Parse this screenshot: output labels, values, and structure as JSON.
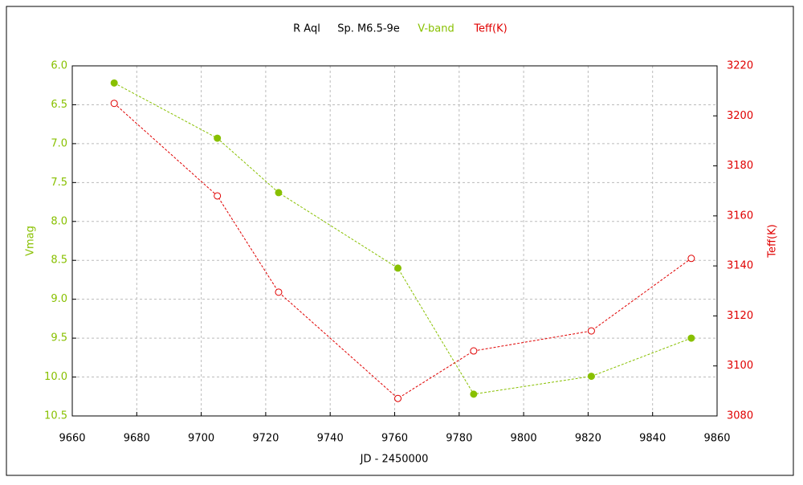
{
  "chart_data": {
    "type": "line",
    "title": "R Aql",
    "subtitle": "Sp. M6.5-9e",
    "xlabel": "JD - 2450000",
    "ylabel": "Vmag",
    "y2label": "Teff(K)",
    "x": [
      9673,
      9705,
      9724,
      9761,
      9784.5,
      9821,
      9852
    ],
    "series": [
      {
        "name": "V-band",
        "color": "#88c000",
        "marker": "filled",
        "values": [
          6.22,
          6.93,
          7.63,
          8.6,
          10.22,
          9.99,
          9.5
        ]
      },
      {
        "name": "Teff(K)",
        "color": "#e00000",
        "marker": "hollow",
        "axis": "y2",
        "values": [
          3205,
          3168,
          3129.5,
          3087,
          3106,
          3114,
          3143
        ]
      }
    ],
    "xlim": [
      9660,
      9860
    ],
    "xticks": [
      9660,
      9680,
      9700,
      9720,
      9740,
      9760,
      9780,
      9800,
      9820,
      9840,
      9860
    ],
    "ylim": [
      10.5,
      6
    ],
    "y_inverted": true,
    "yticks": [
      {
        "value": 6,
        "label": "6.0"
      },
      6.5,
      {
        "value": 7,
        "label": "7.0"
      },
      7.5,
      {
        "value": 8,
        "label": "8.0"
      },
      8.5,
      {
        "value": 9,
        "label": "9.0"
      },
      9.5,
      {
        "value": 10,
        "label": "10.0"
      },
      10.5
    ],
    "y2lim": [
      3080,
      3220
    ],
    "y2ticks": [
      3080,
      3100,
      3120,
      3140,
      3160,
      3180,
      3200,
      3220
    ],
    "grid": true
  }
}
